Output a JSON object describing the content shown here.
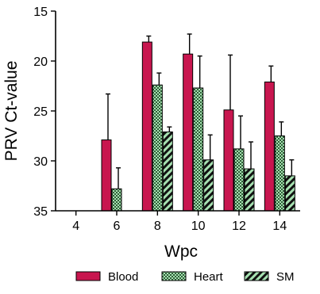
{
  "chart_data": {
    "type": "bar",
    "ylabel": "PRV Ct-value",
    "xlabel": "Wpc",
    "categories": [
      "4",
      "6",
      "8",
      "10",
      "12",
      "14"
    ],
    "y_axis_inverted": true,
    "ylim": [
      15,
      35
    ],
    "yticks": [
      "15",
      "20",
      "25",
      "30",
      "35"
    ],
    "legend_position": "bottom",
    "series": [
      {
        "name": "Blood",
        "color": "#c8164f",
        "pattern": "solid",
        "values": [
          null,
          27.9,
          18.1,
          19.3,
          24.9,
          22.1
        ],
        "error": [
          null,
          4.6,
          0.6,
          2.0,
          5.5,
          1.6
        ]
      },
      {
        "name": "Heart",
        "color": "#a6e1b1",
        "pattern": "checker",
        "values": [
          null,
          32.8,
          22.4,
          22.7,
          28.8,
          27.5
        ],
        "error": [
          null,
          2.1,
          1.2,
          3.2,
          3.3,
          1.4
        ]
      },
      {
        "name": "SM",
        "color": "#a6e1b1",
        "pattern": "diagonal",
        "values": [
          null,
          null,
          27.1,
          29.9,
          30.8,
          31.5
        ],
        "error": [
          null,
          null,
          0.5,
          2.5,
          2.7,
          1.6
        ]
      }
    ]
  }
}
